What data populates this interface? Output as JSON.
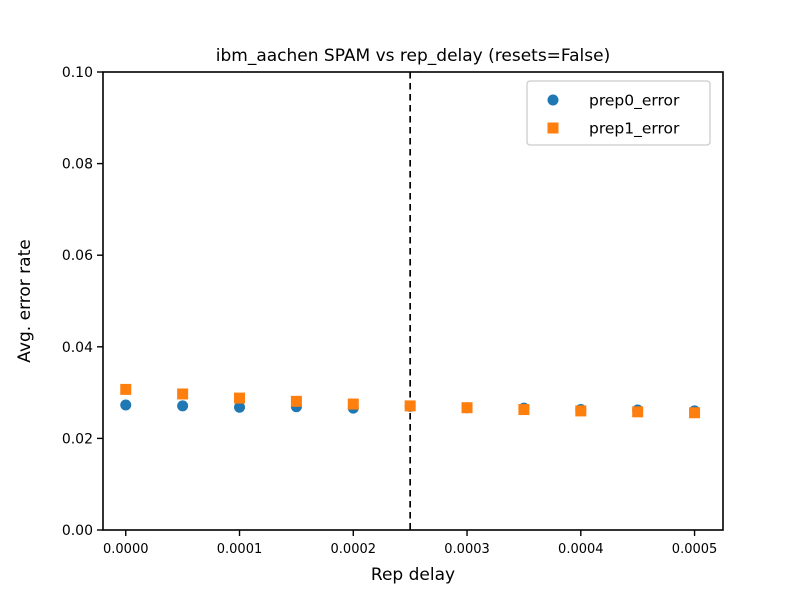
{
  "figure_title": "ibm_aachen SPAM vs rep_delay (resets=False)",
  "chart_data": {
    "type": "scatter",
    "title": "ibm_aachen SPAM vs rep_delay (resets=False)",
    "xlabel": "Rep delay",
    "ylabel": "Avg. error rate",
    "xlim": [
      -2e-05,
      0.000525
    ],
    "ylim": [
      0.0,
      0.1
    ],
    "grid": false,
    "x_ticks": [
      0.0,
      0.0001,
      0.0002,
      0.0003,
      0.0004,
      0.0005
    ],
    "x_tick_labels": [
      "0.0000",
      "0.0001",
      "0.0002",
      "0.0003",
      "0.0004",
      "0.0005"
    ],
    "y_ticks": [
      0.0,
      0.02,
      0.04,
      0.06,
      0.08,
      0.1
    ],
    "y_tick_labels": [
      "0.00",
      "0.02",
      "0.04",
      "0.06",
      "0.08",
      "0.10"
    ],
    "x": [
      0.0,
      5e-05,
      0.0001,
      0.00015,
      0.0002,
      0.00025,
      0.0003,
      0.00035,
      0.0004,
      0.00045,
      0.0005
    ],
    "series": [
      {
        "name": "prep0_error",
        "marker": "circle",
        "color": "#1f77b4",
        "values": [
          0.0273,
          0.0271,
          0.0268,
          0.0269,
          0.0266,
          0.027,
          0.0267,
          0.0266,
          0.0263,
          0.0262,
          0.026
        ]
      },
      {
        "name": "prep1_error",
        "marker": "square",
        "color": "#ff7f0e",
        "values": [
          0.0307,
          0.0297,
          0.0288,
          0.0281,
          0.0275,
          0.0271,
          0.0267,
          0.0263,
          0.026,
          0.0258,
          0.0256
        ]
      }
    ],
    "vline": {
      "x": 0.00025,
      "style": "dashed",
      "color": "#000000"
    },
    "legend": {
      "position": "upper right",
      "entries": [
        "prep0_error",
        "prep1_error"
      ]
    }
  }
}
